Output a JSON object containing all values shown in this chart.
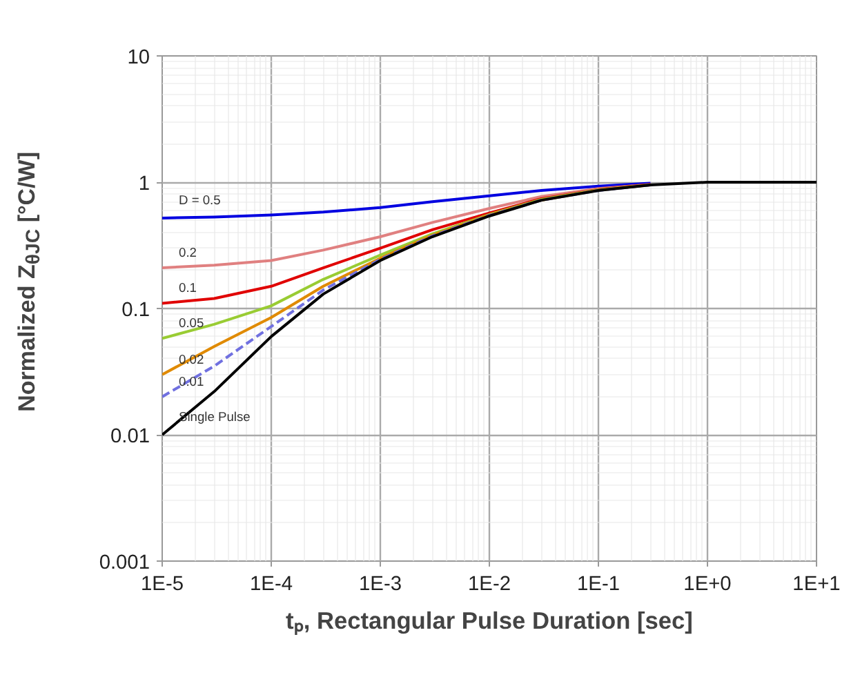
{
  "chart_data": {
    "type": "line",
    "xlabel": "tₚ, Rectangular Pulse Duration [sec]",
    "ylabel": "Normalized Z$_{θJC}$ [°C/W]",
    "log": "xy",
    "grid": true,
    "marker": "none",
    "x": [
      1e-05,
      3e-05,
      0.0001,
      0.0003,
      0.001,
      0.003,
      0.01,
      0.03,
      0.1,
      0.3,
      1,
      10
    ],
    "xlim": [
      1e-05,
      10
    ],
    "ylim": [
      0.001,
      10
    ],
    "xticks": [
      {
        "value": 1e-05,
        "label": "1E-5"
      },
      {
        "value": 0.0001,
        "label": "1E-4"
      },
      {
        "value": 0.001,
        "label": "1E-3"
      },
      {
        "value": 0.01,
        "label": "1E-2"
      },
      {
        "value": 0.1,
        "label": "1E-1"
      },
      {
        "value": 1,
        "label": "1E+0"
      },
      {
        "value": 10,
        "label": "1E+1"
      }
    ],
    "yticks": [
      0.001,
      0.01,
      0.1,
      1,
      10
    ],
    "series": [
      {
        "name": "D = 0.5",
        "color": "#0000e0",
        "line_style": "solid",
        "values": [
          0.52,
          0.53,
          0.55,
          0.58,
          0.63,
          0.7,
          0.78,
          0.86,
          0.93,
          0.98,
          null,
          null
        ]
      },
      {
        "name": "0.2",
        "color": "#e08080",
        "line_style": "solid",
        "values": [
          0.21,
          0.22,
          0.24,
          0.29,
          0.37,
          0.48,
          0.62,
          0.77,
          0.89,
          0.96,
          null,
          null
        ]
      },
      {
        "name": "0.1",
        "color": "#e00000",
        "line_style": "solid",
        "values": [
          0.11,
          0.12,
          0.15,
          0.21,
          0.3,
          0.42,
          0.57,
          0.74,
          0.875,
          0.96,
          null,
          null
        ]
      },
      {
        "name": "0.05",
        "color": "#99cc33",
        "line_style": "solid",
        "values": [
          0.058,
          0.075,
          0.105,
          0.17,
          0.265,
          0.39,
          0.555,
          0.73,
          0.87,
          0.955,
          null,
          null
        ]
      },
      {
        "name": "0.02",
        "color": "#e08a00",
        "line_style": "solid",
        "values": [
          0.03,
          0.05,
          0.085,
          0.15,
          0.25,
          0.38,
          0.55,
          0.72,
          0.865,
          0.95,
          null,
          null
        ]
      },
      {
        "name": "0.01",
        "color": "#7070e0",
        "line_style": "dashed",
        "values": [
          0.02,
          0.035,
          0.072,
          0.14,
          0.245,
          0.375,
          0.545,
          0.72,
          0.86,
          0.95,
          null,
          null
        ]
      },
      {
        "name": "Single Pulse",
        "color": "#000000",
        "line_style": "solid",
        "values": [
          0.01,
          0.022,
          0.06,
          0.13,
          0.24,
          0.37,
          0.54,
          0.72,
          0.86,
          0.95,
          1.0,
          1.0
        ]
      }
    ]
  }
}
